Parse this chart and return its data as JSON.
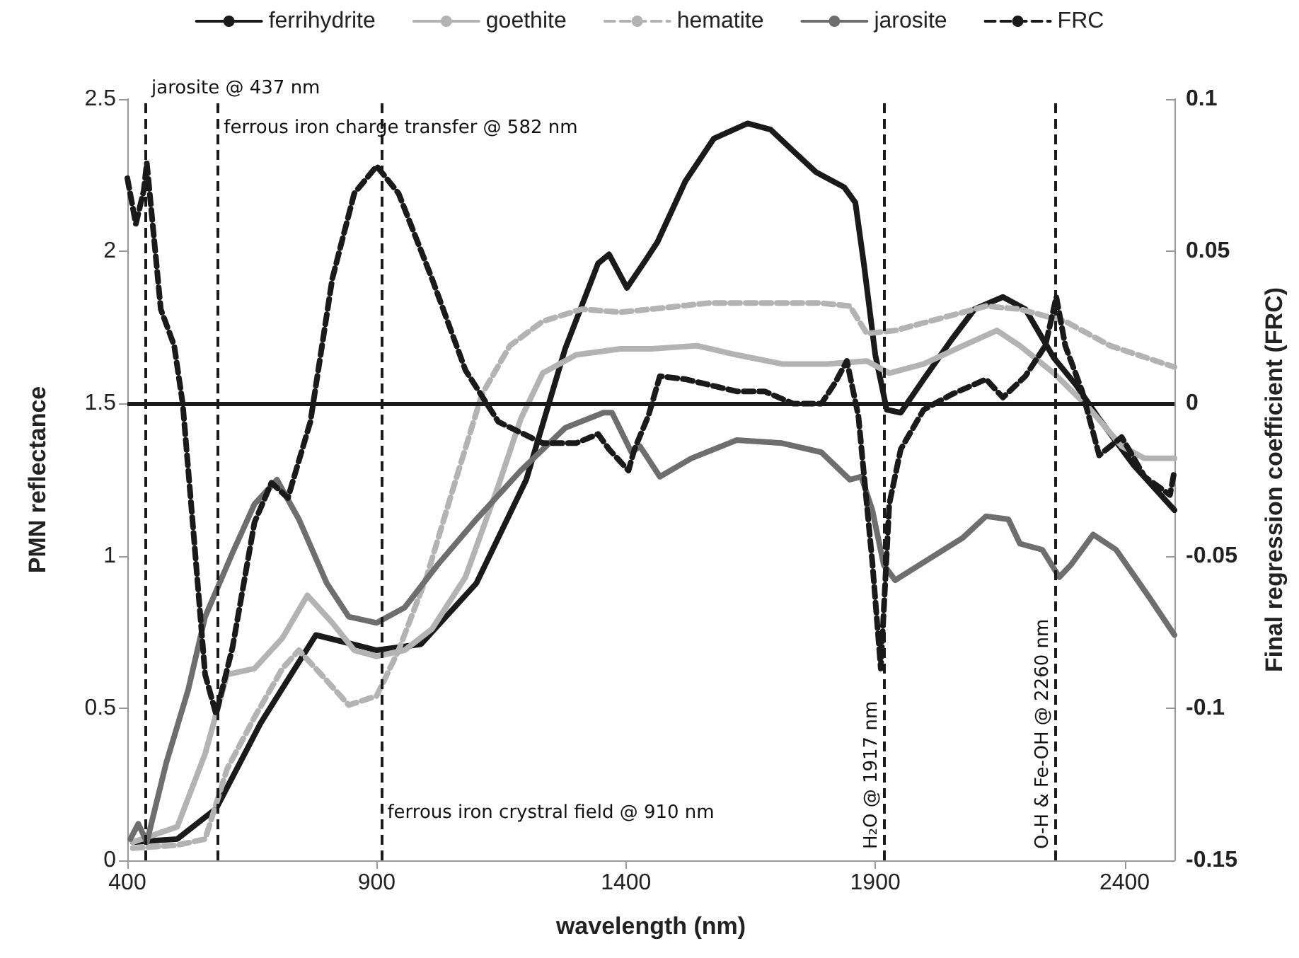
{
  "chart_data": {
    "type": "line",
    "xlabel": "wavelength (nm)",
    "ylabel": "PMN reflectance",
    "y2label": "Final regression coefficient (FRC)",
    "xlim": [
      400,
      2500
    ],
    "xticks": [
      400,
      900,
      1400,
      1900,
      2400
    ],
    "ylim": [
      0,
      2.5
    ],
    "yticks": [
      0,
      0.5,
      1,
      1.5,
      2,
      2.5
    ],
    "y2lim": [
      -0.15,
      0.1
    ],
    "y2ticks": [
      -0.15,
      -0.1,
      -0.05,
      0,
      0.05,
      0.1
    ],
    "grid": false,
    "legend": "top",
    "marker": "none",
    "ref_lines": [
      {
        "axis": "x",
        "value": 437,
        "label": "jarosite @ 437 nm",
        "line_style": "dashed",
        "color": "#1a1a1a"
      },
      {
        "axis": "x",
        "value": 582,
        "label": "ferrous iron charge transfer @ 582 nm",
        "line_style": "dashed",
        "color": "#1a1a1a"
      },
      {
        "axis": "x",
        "value": 910,
        "label": "ferrous iron crystral field @ 910 nm",
        "line_style": "dashed",
        "color": "#1a1a1a"
      },
      {
        "axis": "x",
        "value": 1917,
        "label": "H₂O @ 1917 nm",
        "line_style": "dashed",
        "color": "#1a1a1a"
      },
      {
        "axis": "x",
        "value": 2260,
        "label": "O-H & Fe-OH @ 2260 nm",
        "line_style": "dashed",
        "color": "#1a1a1a"
      },
      {
        "axis": "y",
        "value": 1.5,
        "line_style": "solid",
        "color": "#1a1a1a"
      }
    ],
    "series": [
      {
        "name": "ferrihydrite",
        "color": "#1a1a1a",
        "line_style": "solid",
        "x": [
          411,
          500,
          578,
          667,
          778,
          900,
          989,
          1100,
          1200,
          1278,
          1344,
          1366,
          1402,
          1439,
          1463,
          1519,
          1576,
          1644,
          1690,
          1735,
          1781,
          1838,
          1860,
          1877,
          1900,
          1923,
          1951,
          1997,
          2053,
          2099,
          2156,
          2201,
          2258,
          2303,
          2349,
          2417,
          2500
        ],
        "values": [
          0.06,
          0.07,
          0.17,
          0.45,
          0.74,
          0.69,
          0.71,
          0.91,
          1.25,
          1.68,
          1.96,
          1.99,
          1.88,
          1.97,
          2.03,
          2.23,
          2.37,
          2.42,
          2.4,
          2.33,
          2.26,
          2.21,
          2.16,
          1.96,
          1.66,
          1.48,
          1.47,
          1.58,
          1.71,
          1.81,
          1.85,
          1.81,
          1.65,
          1.56,
          1.45,
          1.3,
          1.15
        ]
      },
      {
        "name": "goethite",
        "color": "#b3b3b3",
        "line_style": "solid",
        "x": [
          411,
          500,
          556,
          600,
          655,
          711,
          761,
          811,
          855,
          900,
          956,
          1011,
          1078,
          1144,
          1189,
          1233,
          1300,
          1389,
          1451,
          1542,
          1622,
          1713,
          1803,
          1883,
          1928,
          1997,
          2076,
          2144,
          2190,
          2258,
          2326,
          2394,
          2440,
          2500
        ],
        "values": [
          0.06,
          0.11,
          0.35,
          0.61,
          0.63,
          0.73,
          0.87,
          0.78,
          0.69,
          0.67,
          0.69,
          0.76,
          0.93,
          1.23,
          1.45,
          1.6,
          1.66,
          1.68,
          1.68,
          1.69,
          1.66,
          1.63,
          1.63,
          1.64,
          1.6,
          1.63,
          1.69,
          1.74,
          1.69,
          1.6,
          1.49,
          1.36,
          1.32,
          1.32
        ]
      },
      {
        "name": "hematite",
        "color": "#b3b3b3",
        "line_style": "dashed",
        "x": [
          411,
          500,
          556,
          600,
          655,
          711,
          744,
          789,
          844,
          900,
          944,
          1000,
          1055,
          1111,
          1167,
          1233,
          1311,
          1389,
          1451,
          1565,
          1678,
          1792,
          1849,
          1883,
          1940,
          2031,
          2122,
          2190,
          2281,
          2371,
          2500
        ],
        "values": [
          0.04,
          0.05,
          0.07,
          0.3,
          0.47,
          0.63,
          0.69,
          0.61,
          0.51,
          0.54,
          0.69,
          0.93,
          1.23,
          1.53,
          1.69,
          1.77,
          1.81,
          1.8,
          1.81,
          1.83,
          1.83,
          1.83,
          1.82,
          1.73,
          1.74,
          1.78,
          1.82,
          1.81,
          1.77,
          1.69,
          1.62
        ]
      },
      {
        "name": "jarosite",
        "color": "#6e6e6e",
        "line_style": "solid",
        "x": [
          406,
          422,
          439,
          478,
          522,
          556,
          611,
          655,
          700,
          744,
          800,
          844,
          900,
          956,
          1022,
          1100,
          1189,
          1278,
          1355,
          1372,
          1411,
          1428,
          1468,
          1531,
          1622,
          1713,
          1792,
          1849,
          1872,
          1894,
          1917,
          1940,
          2008,
          2076,
          2122,
          2167,
          2190,
          2235,
          2269,
          2292,
          2337,
          2383,
          2451,
          2500
        ],
        "values": [
          0.07,
          0.12,
          0.06,
          0.32,
          0.56,
          0.8,
          1.01,
          1.17,
          1.25,
          1.12,
          0.91,
          0.8,
          0.78,
          0.83,
          0.97,
          1.12,
          1.28,
          1.42,
          1.47,
          1.47,
          1.34,
          1.36,
          1.26,
          1.32,
          1.38,
          1.37,
          1.34,
          1.25,
          1.26,
          1.15,
          0.97,
          0.92,
          0.99,
          1.06,
          1.13,
          1.12,
          1.04,
          1.02,
          0.93,
          0.97,
          1.07,
          1.02,
          0.86,
          0.74
        ]
      },
      {
        "name": "FRC",
        "color": "#1a1a1a",
        "line_style": "dashed",
        "axis": "y2",
        "x": [
          400,
          417,
          433,
          439,
          456,
          467,
          494,
          511,
          533,
          556,
          578,
          611,
          655,
          689,
          722,
          767,
          811,
          855,
          900,
          944,
          1011,
          1078,
          1144,
          1233,
          1300,
          1344,
          1366,
          1405,
          1417,
          1445,
          1468,
          1519,
          1622,
          1678,
          1735,
          1792,
          1820,
          1843,
          1866,
          1894,
          1911,
          1928,
          1951,
          1997,
          2053,
          2122,
          2156,
          2201,
          2241,
          2263,
          2281,
          2315,
          2349,
          2394,
          2440,
          2491,
          2500
        ],
        "values": [
          0.074,
          0.059,
          0.07,
          0.079,
          0.05,
          0.031,
          0.019,
          0,
          -0.043,
          -0.089,
          -0.102,
          -0.08,
          -0.039,
          -0.026,
          -0.031,
          -0.006,
          0.041,
          0.069,
          0.078,
          0.069,
          0.041,
          0.011,
          -0.006,
          -0.013,
          -0.013,
          -0.01,
          -0.015,
          -0.022,
          -0.015,
          -0.004,
          0.009,
          0.008,
          0.004,
          0.004,
          0,
          0,
          0.007,
          0.014,
          -0.004,
          -0.052,
          -0.087,
          -0.033,
          -0.015,
          -0.002,
          0.003,
          0.008,
          0.002,
          0.009,
          0.019,
          0.035,
          0.019,
          0.004,
          -0.017,
          -0.011,
          -0.024,
          -0.03,
          -0.022
        ]
      }
    ]
  }
}
